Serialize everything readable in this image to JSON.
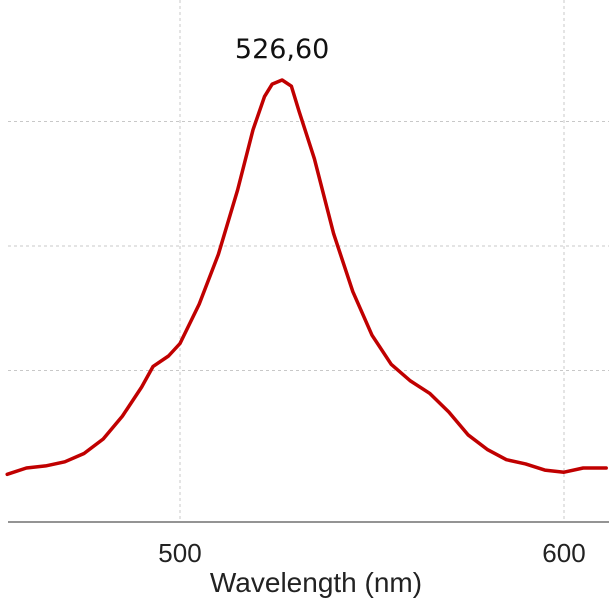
{
  "chart_data": {
    "type": "line",
    "title": "",
    "xlabel": "Wavelength (nm)",
    "ylabel": "",
    "xlim": [
      455,
      611
    ],
    "ylim": [
      0,
      1.07
    ],
    "x_ticks": [
      500,
      600
    ],
    "x_tick_labels": [
      "500",
      "600"
    ],
    "y_gridlines": [
      0.3,
      0.6,
      0.9
    ],
    "grid": true,
    "annotations": [
      {
        "text": "526,60",
        "x": 526.6,
        "y": 1.0
      }
    ],
    "series": [
      {
        "color": "#c00000",
        "x": [
          455,
          460,
          465,
          470,
          475,
          480,
          485,
          490,
          493,
          497,
          500,
          505,
          510,
          515,
          519,
          522,
          524,
          526.6,
          529,
          531,
          535,
          540,
          545,
          550,
          555,
          560,
          565,
          570,
          575,
          580,
          585,
          590,
          595,
          600,
          605,
          611
        ],
        "y": [
          0.05,
          0.065,
          0.07,
          0.08,
          0.1,
          0.135,
          0.19,
          0.26,
          0.31,
          0.335,
          0.365,
          0.46,
          0.58,
          0.735,
          0.88,
          0.96,
          0.99,
          1.0,
          0.985,
          0.925,
          0.81,
          0.63,
          0.49,
          0.385,
          0.315,
          0.275,
          0.245,
          0.2,
          0.145,
          0.11,
          0.085,
          0.075,
          0.06,
          0.055,
          0.065,
          0.065
        ]
      }
    ]
  }
}
